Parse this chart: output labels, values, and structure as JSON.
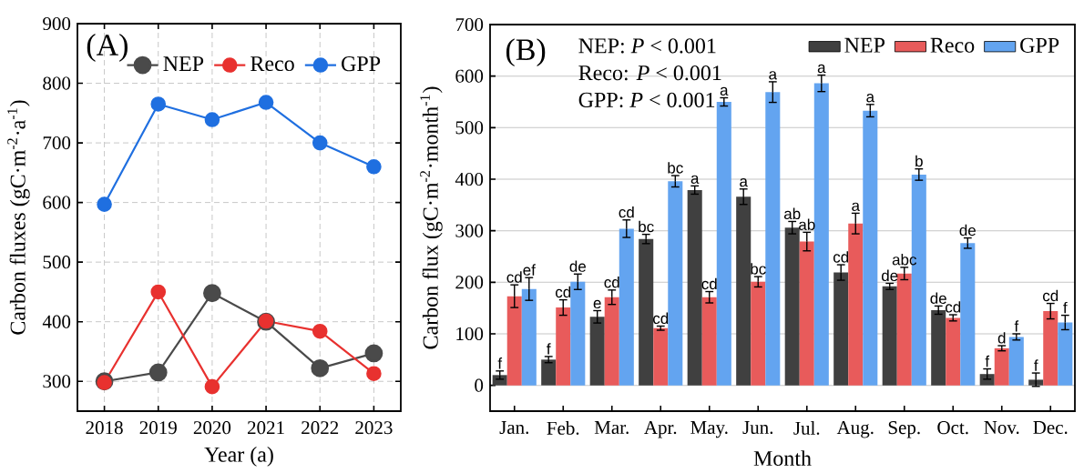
{
  "chart_data": [
    {
      "type": "line",
      "xlabel": "Year (a)",
      "ylabel": "Carbon fluxes (gC·m$^{-2}$·a$^{-1}$)",
      "annotations": [
        "(A)"
      ],
      "x": [
        2018,
        2019,
        2020,
        2021,
        2022,
        2023
      ],
      "xlim": [
        2017.5,
        2023.5
      ],
      "xticks": [
        2018,
        2019,
        2020,
        2021,
        2022,
        2023
      ],
      "ylim": [
        250,
        900
      ],
      "yticks": [
        300,
        400,
        500,
        600,
        700,
        800,
        900
      ],
      "grid": true,
      "legend": "top",
      "marker": "circle",
      "line_style": "solid",
      "series": [
        {
          "name": "NEP",
          "color": "#4a4a4a",
          "values": [
            300,
            315,
            448,
            400,
            322,
            347
          ]
        },
        {
          "name": "Reco",
          "color": "#e8312f",
          "values": [
            298,
            450,
            291,
            401,
            384,
            313
          ]
        },
        {
          "name": "GPP",
          "color": "#1f6fe0",
          "values": [
            597,
            765,
            739,
            768,
            700,
            660
          ]
        }
      ]
    },
    {
      "type": "bar",
      "xlabel": "Month",
      "ylabel": "Carbon flux (gC·m$^{-2}$·month$^{-1}$)",
      "annotations": [
        "(B)",
        "NEP: *P* < 0.001",
        "Reco: *P* < 0.001",
        "GPP: *P* < 0.001"
      ],
      "categories": [
        "Jan.",
        "Feb.",
        "Mar.",
        "Apr.",
        "May.",
        "Jun.",
        "Jul.",
        "Aug.",
        "Sep.",
        "Oct.",
        "Nov.",
        "Dec."
      ],
      "ylim": [
        -50,
        700
      ],
      "yticks": [
        0,
        100,
        200,
        300,
        400,
        500,
        600,
        700
      ],
      "grid": "y",
      "legend": "top right",
      "series": [
        {
          "name": "NEP",
          "color": "#404040",
          "values": [
            20,
            50,
            133,
            284,
            379,
            366,
            306,
            219,
            192,
            146,
            22,
            11
          ],
          "errors": [
            8,
            6,
            12,
            9,
            8,
            15,
            12,
            15,
            6,
            8,
            10,
            13
          ],
          "value_labels": [
            "f",
            "f",
            "e",
            "bc",
            "a",
            "a",
            "ab",
            "cd",
            "de",
            "de",
            "f",
            "f"
          ]
        },
        {
          "name": "Reco",
          "color": "#e85b5b",
          "values": [
            173,
            151,
            171,
            111,
            171,
            201,
            279,
            314,
            217,
            131,
            72,
            144
          ],
          "errors": [
            22,
            15,
            14,
            4,
            11,
            10,
            18,
            20,
            12,
            6,
            5,
            15
          ],
          "value_labels": [
            "cd",
            "cd",
            "cd",
            "cd",
            "cd",
            "bc",
            "ab",
            "a",
            "abc",
            "cd",
            "d",
            "cd"
          ]
        },
        {
          "name": "GPP",
          "color": "#63a4f0",
          "values": [
            187,
            201,
            304,
            396,
            550,
            569,
            586,
            533,
            409,
            276,
            94,
            122
          ],
          "errors": [
            22,
            15,
            17,
            11,
            8,
            20,
            16,
            12,
            11,
            10,
            6,
            14
          ],
          "value_labels": [
            "ef",
            "de",
            "cd",
            "bc",
            "a",
            "a",
            "a",
            "a",
            "b",
            "de",
            "f",
            "f"
          ]
        }
      ]
    }
  ]
}
